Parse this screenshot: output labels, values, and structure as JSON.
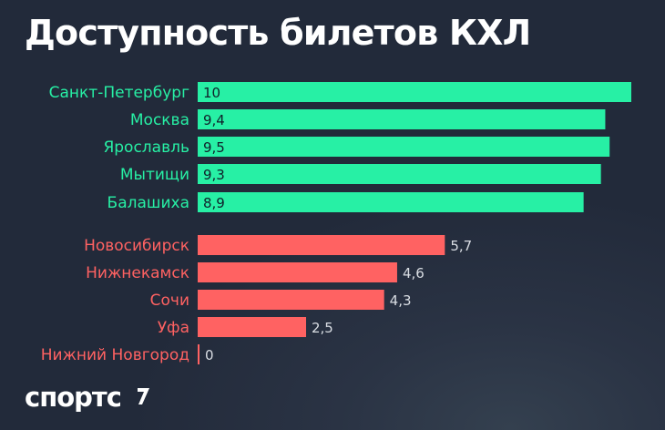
{
  "title": "Доступность билетов КХЛ",
  "logo": "спортс",
  "logo_mark": "спортс-apostrophe-mark",
  "colors": {
    "background": "#232c3d",
    "high": "#27f0a5",
    "low": "#ff6262",
    "label_on_bar": "#10202a",
    "label_outside": "#d9dde3"
  },
  "chart_data": {
    "type": "bar",
    "orientation": "horizontal",
    "title": "Доступность билетов КХЛ",
    "xlabel": "",
    "ylabel": "",
    "xlim": [
      0,
      10
    ],
    "grid": false,
    "legend": "none",
    "categories": [
      "Санкт-Петербург",
      "Москва",
      "Ярославль",
      "Мытищи",
      "Балашиха",
      "Новосибирск",
      "Нижнекамск",
      "Сочи",
      "Уфа",
      "Нижний Новгород"
    ],
    "values": [
      10,
      9.4,
      9.5,
      9.3,
      8.9,
      5.7,
      4.6,
      4.3,
      2.5,
      0
    ],
    "value_labels": [
      "10",
      "9,4",
      "9,5",
      "9,3",
      "8,9",
      "5,7",
      "4,6",
      "4,3",
      "2,5",
      "0"
    ],
    "groups": [
      "high",
      "high",
      "high",
      "high",
      "high",
      "low",
      "low",
      "low",
      "low",
      "low"
    ]
  }
}
